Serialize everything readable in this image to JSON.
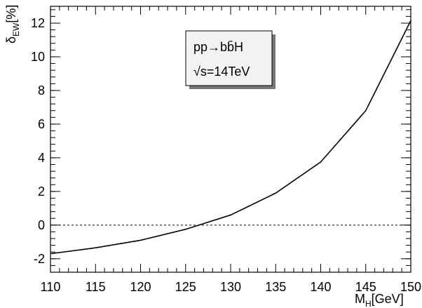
{
  "chart_data": {
    "type": "line",
    "xlabel": "M",
    "xlabel_sub": "H",
    "xlabel_unit": "[GeV]",
    "ylabel": "δ",
    "ylabel_sub": "EW",
    "ylabel_unit": "[%]",
    "xlim": [
      110,
      150
    ],
    "ylim": [
      -2.8,
      13.0
    ],
    "x_ticks": [
      110,
      115,
      120,
      125,
      130,
      135,
      140,
      145,
      150
    ],
    "y_ticks": [
      -2,
      0,
      2,
      4,
      6,
      8,
      10,
      12
    ],
    "reference_line": {
      "y": 0,
      "style": "dashed"
    },
    "annotation_lines": [
      "pp→bb̄H",
      "√s=14TeV"
    ],
    "series": [
      {
        "x": [
          110,
          115,
          120,
          125,
          130,
          135,
          140,
          145,
          150
        ],
        "y": [
          -1.7,
          -1.35,
          -0.9,
          -0.25,
          0.6,
          1.9,
          3.75,
          6.8,
          12.15
        ]
      }
    ],
    "grid": false
  }
}
